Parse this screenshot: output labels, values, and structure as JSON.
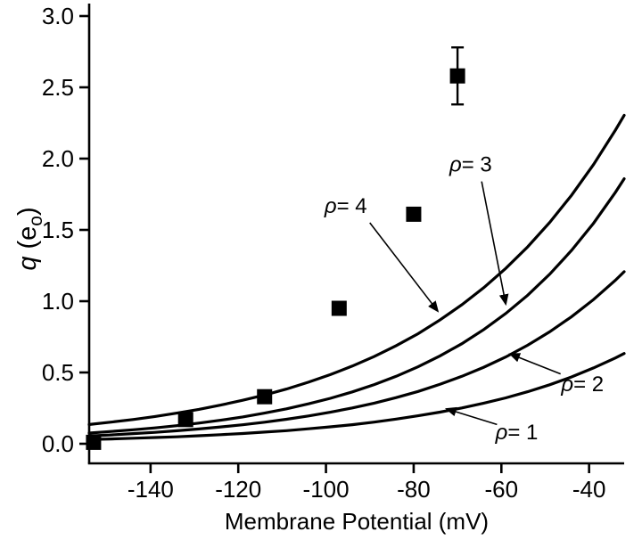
{
  "figure": {
    "background": "#ffffff",
    "ink": "#000000"
  },
  "chart_data": {
    "type": "line+scatter",
    "title": "",
    "xlabel": "Membrane Potential (mV)",
    "ylabel": {
      "q": "q",
      "open": " (e",
      "sub": "o",
      "close": ")"
    },
    "xlim": [
      -154,
      -32
    ],
    "ylim": [
      -0.1375,
      3.0625
    ],
    "x_tick_values": [
      -140,
      -120,
      -100,
      -80,
      -60,
      -40
    ],
    "x_tick_labels": [
      "-140",
      "-120",
      "-100",
      "-80",
      "-60",
      "-40"
    ],
    "y_tick_values": [
      0,
      0.5,
      1,
      1.5,
      2,
      2.5,
      3
    ],
    "y_tick_labels": [
      "0.0",
      "0.5",
      "1.0",
      "1.5",
      "2.0",
      "2.5",
      "3.0"
    ],
    "curve_x": [
      -154,
      -149,
      -144,
      -139,
      -134,
      -129,
      -124,
      -119,
      -114,
      -109,
      -104,
      -99,
      -94,
      -89,
      -84,
      -79,
      -74,
      -69,
      -64,
      -59,
      -54,
      -49,
      -44,
      -39,
      -34,
      -32
    ],
    "curves": [
      {
        "name": "rho-1",
        "rho": 1,
        "values": [
          0.03,
          0.034,
          0.039,
          0.044,
          0.049,
          0.056,
          0.064,
          0.072,
          0.082,
          0.092,
          0.105,
          0.119,
          0.134,
          0.152,
          0.173,
          0.196,
          0.222,
          0.251,
          0.285,
          0.322,
          0.365,
          0.414,
          0.469,
          0.532,
          0.602,
          0.633
        ]
      },
      {
        "name": "rho-2",
        "rho": 2,
        "values": [
          0.055,
          0.062,
          0.071,
          0.08,
          0.091,
          0.104,
          0.118,
          0.133,
          0.151,
          0.172,
          0.195,
          0.221,
          0.251,
          0.285,
          0.324,
          0.367,
          0.417,
          0.473,
          0.537,
          0.609,
          0.691,
          0.785,
          0.891,
          1.011,
          1.147,
          1.207
        ]
      },
      {
        "name": "rho-3",
        "rho": 3,
        "values": [
          0.075,
          0.086,
          0.098,
          0.111,
          0.127,
          0.145,
          0.165,
          0.188,
          0.215,
          0.245,
          0.28,
          0.319,
          0.364,
          0.415,
          0.473,
          0.54,
          0.616,
          0.702,
          0.801,
          0.914,
          1.042,
          1.189,
          1.356,
          1.546,
          1.764,
          1.859
        ]
      },
      {
        "name": "rho-4",
        "rho": 4,
        "values": [
          0.135,
          0.152,
          0.17,
          0.191,
          0.215,
          0.241,
          0.271,
          0.305,
          0.342,
          0.384,
          0.432,
          0.485,
          0.545,
          0.612,
          0.688,
          0.772,
          0.868,
          0.975,
          1.095,
          1.23,
          1.381,
          1.552,
          1.743,
          1.958,
          2.2,
          2.304
        ]
      }
    ],
    "scatter": {
      "name": "measured-gating-charge",
      "marker": "filled-square",
      "marker_size": 17,
      "points": [
        {
          "x": -153,
          "y": 0.01
        },
        {
          "x": -132,
          "y": 0.17
        },
        {
          "x": -114,
          "y": 0.33
        },
        {
          "x": -97,
          "y": 0.95
        },
        {
          "x": -80,
          "y": 1.61
        },
        {
          "x": -70,
          "y": 2.58,
          "error": 0.2
        }
      ]
    },
    "annotations": [
      {
        "name": "rho-4-label",
        "symbol": "ρ",
        "rest": "= 4",
        "tx": -95.5,
        "ty": 1.67,
        "ax": -90,
        "ay": 1.55,
        "bx": -74.5,
        "by": 0.93
      },
      {
        "name": "rho-3-label",
        "symbol": "ρ",
        "rest": "= 3",
        "tx": -67,
        "ty": 1.96,
        "ax": -64.5,
        "ay": 1.84,
        "bx": -59,
        "by": 0.98
      },
      {
        "name": "rho-2-label",
        "symbol": "ρ",
        "rest": "= 2",
        "tx": -41.5,
        "ty": 0.42,
        "ax": -46.5,
        "ay": 0.49,
        "bx": -58,
        "by": 0.63
      },
      {
        "name": "rho-1-label",
        "symbol": "ρ",
        "rest": "= 1",
        "tx": -56.5,
        "ty": 0.08,
        "ax": -61,
        "ay": 0.135,
        "bx": -72.5,
        "by": 0.245
      }
    ]
  }
}
